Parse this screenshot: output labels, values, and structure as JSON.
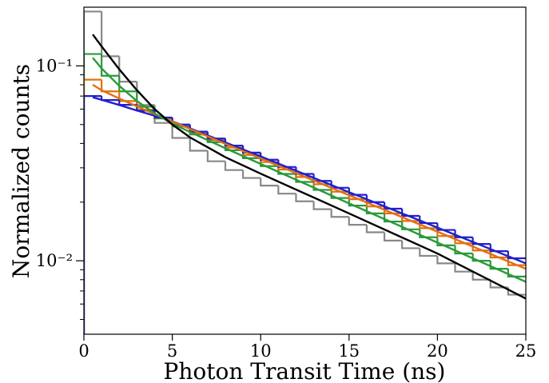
{
  "chart_data": {
    "type": "histogram",
    "x_label": "Photon Transit Time (ns)",
    "y_label": "Normalized counts",
    "xlim": [
      0,
      25
    ],
    "xticks": [
      0,
      5,
      10,
      15,
      20,
      25
    ],
    "ylim": [
      0.0042,
      0.2
    ],
    "yscale": "log",
    "yticks": [
      {
        "value": 0.1,
        "label": "10⁻¹"
      },
      {
        "value": 0.01,
        "label": "10⁻²"
      }
    ],
    "yminorticks": [
      0.005,
      0.006,
      0.007,
      0.008,
      0.009,
      0.02,
      0.03,
      0.04,
      0.05,
      0.06,
      0.07,
      0.08,
      0.09
    ],
    "bins": [
      0,
      1,
      2,
      3,
      4,
      5,
      6,
      7,
      8,
      9,
      10,
      11,
      12,
      13,
      14,
      15,
      16,
      17,
      18,
      19,
      20,
      21,
      22,
      23,
      24,
      25
    ],
    "series": [
      {
        "color": "#888888",
        "values": [
          0.19,
          0.112,
          0.083,
          0.063,
          0.051,
          0.0427,
          0.0367,
          0.0324,
          0.0292,
          0.0266,
          0.0243,
          0.0221,
          0.0202,
          0.0184,
          0.0168,
          0.0153,
          0.014,
          0.0127,
          0.0116,
          0.0106,
          0.0097,
          0.0088,
          0.008,
          0.0073,
          0.0067
        ]
      },
      {
        "color": "#2a9a3a",
        "values": [
          0.115,
          0.089,
          0.074,
          0.0617,
          0.0537,
          0.0489,
          0.0445,
          0.0406,
          0.0369,
          0.0336,
          0.0306,
          0.0279,
          0.0254,
          0.0231,
          0.021,
          0.0192,
          0.0175,
          0.0159,
          0.0145,
          0.0132,
          0.012,
          0.0109,
          0.01,
          0.0091,
          0.0083
        ]
      },
      {
        "color": "#e07010",
        "values": [
          0.085,
          0.074,
          0.066,
          0.0596,
          0.0541,
          0.0494,
          0.0453,
          0.0416,
          0.0381,
          0.0349,
          0.0321,
          0.0294,
          0.0269,
          0.0247,
          0.0226,
          0.0207,
          0.019,
          0.0175,
          0.016,
          0.0147,
          0.0134,
          0.0123,
          0.0113,
          0.0104,
          0.0095
        ]
      },
      {
        "color": "#2020cc",
        "values": [
          0.07,
          0.0668,
          0.0631,
          0.0589,
          0.0543,
          0.05,
          0.046,
          0.0424,
          0.039,
          0.0359,
          0.033,
          0.0303,
          0.0279,
          0.0257,
          0.0237,
          0.0218,
          0.02,
          0.0185,
          0.017,
          0.0156,
          0.0144,
          0.0132,
          0.0122,
          0.0112,
          0.0103
        ]
      }
    ],
    "fits": {
      "type": "line",
      "x": [
        0.5,
        1,
        2,
        3,
        4,
        5,
        6,
        8,
        10,
        15,
        20,
        25
      ],
      "series": [
        {
          "color": "#2020cc",
          "values": [
            0.069,
            0.067,
            0.063,
            0.059,
            0.0555,
            0.052,
            0.0478,
            0.0405,
            0.0343,
            0.0225,
            0.0148,
            0.0097
          ]
        },
        {
          "color": "#e07010",
          "values": [
            0.08,
            0.075,
            0.068,
            0.062,
            0.0565,
            0.0518,
            0.0475,
            0.0398,
            0.0335,
            0.0217,
            0.0141,
            0.0091
          ]
        },
        {
          "color": "#2a9a3a",
          "values": [
            0.11,
            0.097,
            0.079,
            0.066,
            0.057,
            0.0505,
            0.0458,
            0.0378,
            0.0314,
            0.0197,
            0.0124,
            0.0078
          ]
        },
        {
          "color": "#000000",
          "values": [
            0.145,
            0.126,
            0.096,
            0.075,
            0.06,
            0.05,
            0.043,
            0.034,
            0.028,
            0.0175,
            0.0109,
            0.0064
          ]
        }
      ]
    }
  }
}
